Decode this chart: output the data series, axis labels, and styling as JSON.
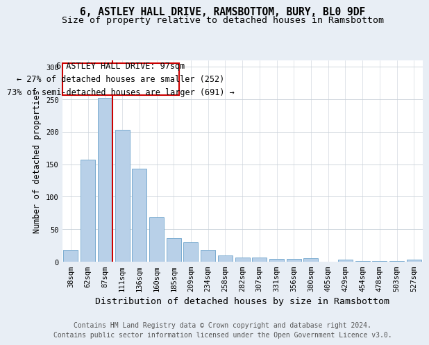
{
  "title": "6, ASTLEY HALL DRIVE, RAMSBOTTOM, BURY, BL0 9DF",
  "subtitle": "Size of property relative to detached houses in Ramsbottom",
  "xlabel": "Distribution of detached houses by size in Ramsbottom",
  "ylabel": "Number of detached properties",
  "categories": [
    "38sqm",
    "62sqm",
    "87sqm",
    "111sqm",
    "136sqm",
    "160sqm",
    "185sqm",
    "209sqm",
    "234sqm",
    "258sqm",
    "282sqm",
    "307sqm",
    "331sqm",
    "356sqm",
    "380sqm",
    "405sqm",
    "429sqm",
    "454sqm",
    "478sqm",
    "503sqm",
    "527sqm"
  ],
  "values": [
    18,
    157,
    252,
    203,
    143,
    68,
    36,
    30,
    18,
    10,
    6,
    6,
    4,
    4,
    5,
    0,
    3,
    1,
    1,
    1,
    3
  ],
  "bar_color": "#b8d0e8",
  "bar_edge_color": "#7aacd0",
  "annotation_box_text": "6 ASTLEY HALL DRIVE: 97sqm\n← 27% of detached houses are smaller (252)\n73% of semi-detached houses are larger (691) →",
  "annotation_box_color": "white",
  "annotation_box_edge_color": "#cc0000",
  "vline_color": "#cc0000",
  "ylim": [
    0,
    310
  ],
  "yticks": [
    0,
    50,
    100,
    150,
    200,
    250,
    300
  ],
  "footer_text": "Contains HM Land Registry data © Crown copyright and database right 2024.\nContains public sector information licensed under the Open Government Licence v3.0.",
  "background_color": "#e8eef5",
  "plot_bg_color": "white",
  "title_fontsize": 10.5,
  "subtitle_fontsize": 9.5,
  "xlabel_fontsize": 9.5,
  "ylabel_fontsize": 8.5,
  "tick_fontsize": 7.5,
  "annotation_fontsize": 8.5,
  "footer_fontsize": 7
}
